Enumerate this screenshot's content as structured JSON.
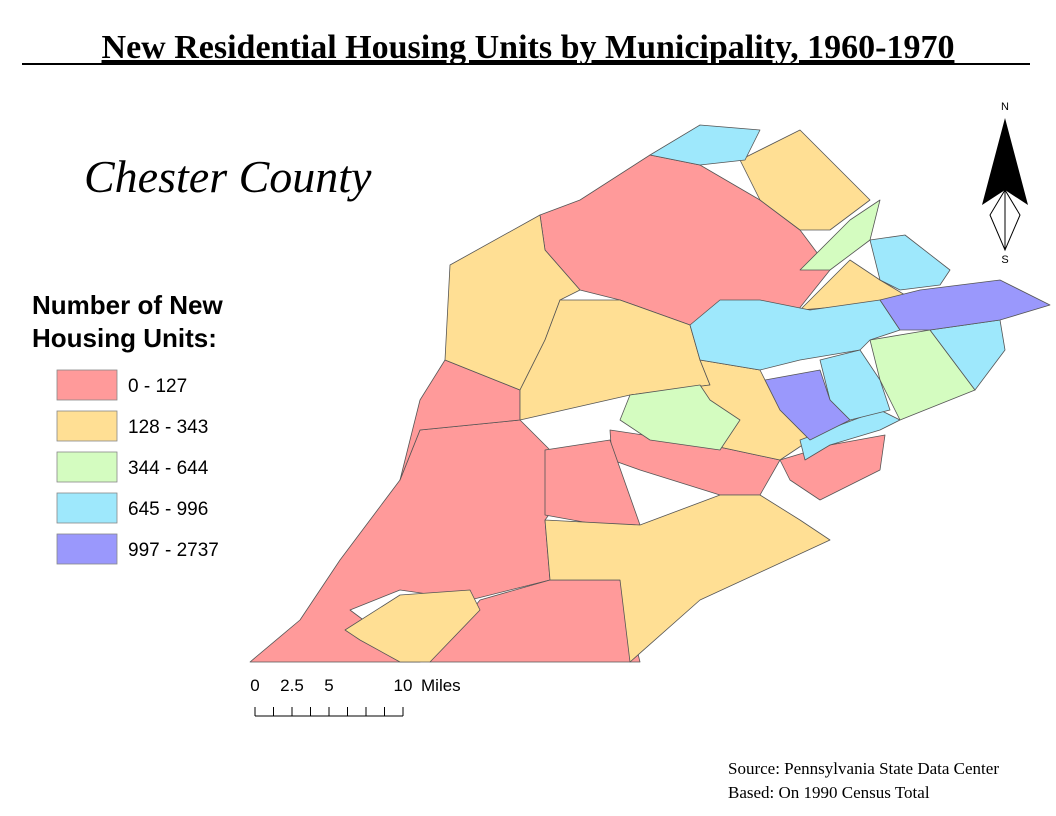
{
  "title": "New Residential Housing Units by Municipality, 1960-1970",
  "subtitle": "Chester County",
  "legend": {
    "title_lines": [
      "Number of New",
      "Housing Units:"
    ],
    "items": [
      {
        "label": "0 - 127",
        "color": "#ff9a9a"
      },
      {
        "label": "128 - 343",
        "color": "#ffdf94"
      },
      {
        "label": "344 - 644",
        "color": "#d4fcc0"
      },
      {
        "label": "645 - 996",
        "color": "#9ee8fc"
      },
      {
        "label": "997 - 2737",
        "color": "#9a98fc"
      }
    ]
  },
  "north_arrow": {
    "north": "N",
    "south": "S"
  },
  "scale_bar": {
    "ticks": [
      0,
      2.5,
      5,
      10
    ],
    "unit": "Miles"
  },
  "source": [
    "Source: Pennsylvania State Data Center",
    "Based: On 1990 Census Total"
  ]
}
